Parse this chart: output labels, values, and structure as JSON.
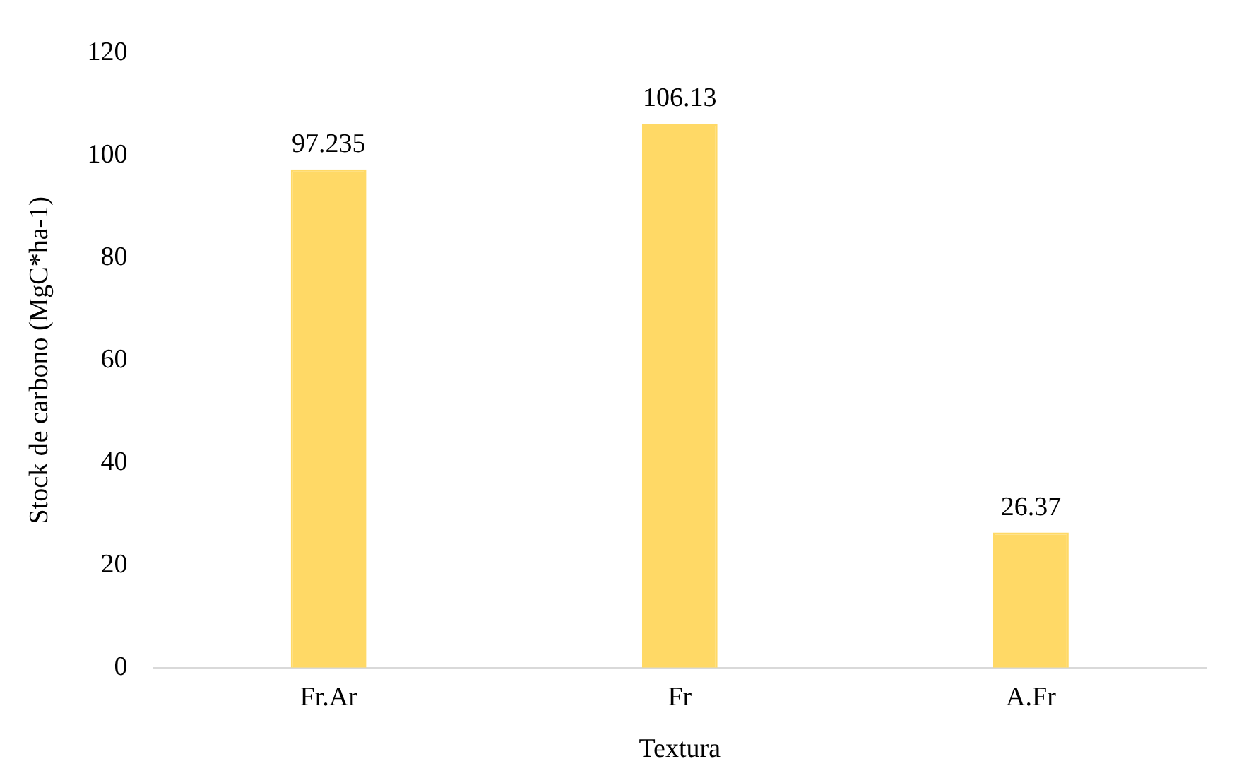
{
  "chart_data": {
    "type": "bar",
    "xlabel": "Textura",
    "ylabel": "Stock de carbono (MgC*ha-1)",
    "categories": [
      "Fr.Ar",
      "Fr",
      "A.Fr"
    ],
    "values": [
      97.235,
      106.13,
      26.37
    ],
    "color": "#ffd966",
    "ylim": [
      0,
      120
    ],
    "yticks": [
      0,
      20,
      40,
      60,
      80,
      100,
      120
    ],
    "grid": false,
    "legend": false,
    "data_labels": true
  }
}
